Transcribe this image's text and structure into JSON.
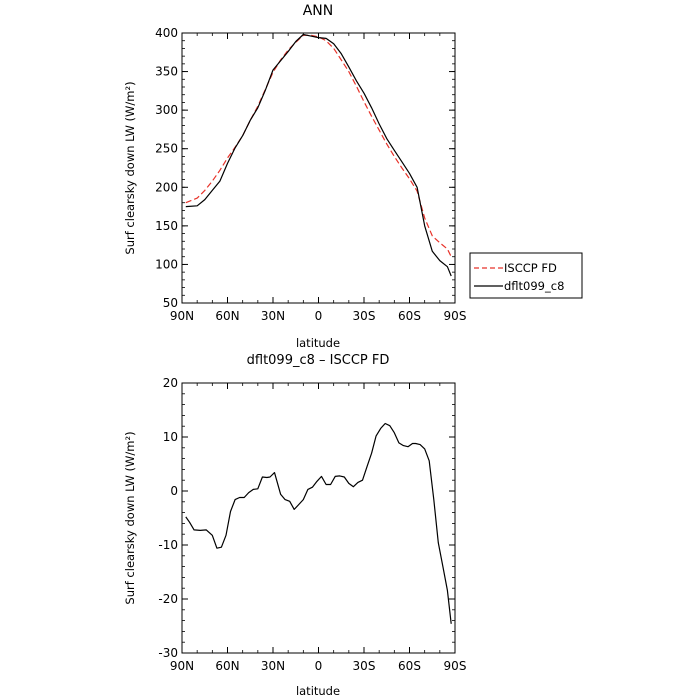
{
  "chart_data": [
    {
      "type": "line",
      "title": "ANN",
      "xlabel": "latitude",
      "ylabel": "Surf clearsky down LW (W/m²)",
      "ylim": [
        50,
        400
      ],
      "xlim": [
        90,
        -90
      ],
      "yticks": [
        50,
        100,
        150,
        200,
        250,
        300,
        350,
        400
      ],
      "xticks": [
        90,
        60,
        30,
        0,
        -30,
        -60,
        -90
      ],
      "xtick_labels": [
        "90N",
        "60N",
        "30N",
        "0",
        "30S",
        "60S",
        "90S"
      ],
      "legend_position": "right",
      "series": [
        {
          "name": "ISCCP FD",
          "color": "#e8332a",
          "dash": "dashed",
          "x": [
            87.5,
            80,
            75,
            70,
            65,
            60,
            55,
            50,
            45,
            40,
            35,
            30,
            25,
            20,
            15,
            10,
            5,
            0,
            -5,
            -10,
            -15,
            -20,
            -25,
            -30,
            -35,
            -40,
            -45,
            -50,
            -55,
            -60,
            -65,
            -70,
            -75,
            -80,
            -85,
            -87.5
          ],
          "y": [
            180,
            186,
            196,
            208,
            222,
            238,
            252,
            267,
            287,
            305,
            327,
            349,
            365,
            378,
            388,
            397,
            397,
            395,
            390,
            380,
            365,
            350,
            331,
            311,
            292,
            274,
            256,
            240,
            225,
            211,
            195,
            160,
            137,
            128,
            120,
            110
          ]
        },
        {
          "name": "dflt099_c8",
          "color": "#000000",
          "dash": "solid",
          "x": [
            87.5,
            80,
            75,
            70,
            65,
            60,
            55,
            50,
            45,
            40,
            35,
            30,
            25,
            20,
            15,
            10,
            5,
            0,
            -5,
            -10,
            -15,
            -20,
            -25,
            -30,
            -35,
            -40,
            -45,
            -50,
            -55,
            -60,
            -65,
            -70,
            -75,
            -80,
            -85,
            -87.5
          ],
          "y": [
            175,
            176,
            184,
            196,
            208,
            231,
            251,
            267,
            287,
            303,
            326,
            352,
            364,
            376,
            389,
            398,
            396,
            394,
            393,
            386,
            373,
            356,
            338,
            322,
            303,
            282,
            263,
            248,
            233,
            218,
            200,
            150,
            117,
            105,
            97,
            85
          ]
        }
      ]
    },
    {
      "type": "line",
      "title": "dflt099_c8 – ISCCP FD",
      "xlabel": "latitude",
      "ylabel": "Surf clearsky down LW (W/m²)",
      "ylim": [
        -30,
        20
      ],
      "xlim": [
        90,
        -90
      ],
      "yticks": [
        -30,
        -20,
        -10,
        0,
        10,
        20
      ],
      "xticks": [
        90,
        60,
        30,
        0,
        -30,
        -60,
        -90
      ],
      "xtick_labels": [
        "90N",
        "60N",
        "30N",
        "0",
        "30S",
        "60S",
        "90S"
      ],
      "series": [
        {
          "name": "",
          "color": "#000000",
          "dash": "solid",
          "x": [
            87.5,
            85,
            82,
            78,
            74,
            70,
            67,
            64,
            61,
            58,
            55,
            52,
            49,
            46,
            43,
            40,
            37,
            34,
            32,
            29,
            25,
            22,
            19,
            16,
            13,
            10,
            7,
            4,
            1,
            -2,
            -5,
            -8,
            -11,
            -14,
            -17,
            -20,
            -23,
            -26,
            -29,
            -32,
            -35,
            -38,
            -41,
            -44,
            -47,
            -50,
            -53,
            -56,
            -59,
            -62,
            -64,
            -67,
            -70,
            -73,
            -76,
            -79,
            -82,
            -85,
            -87.5
          ],
          "y": [
            -4.8,
            -5.8,
            -7.2,
            -7.3,
            -7.2,
            -8.2,
            -10.6,
            -10.4,
            -8.2,
            -3.8,
            -1.6,
            -1.2,
            -1.2,
            -0.3,
            0.3,
            0.4,
            2.6,
            2.5,
            2.6,
            3.4,
            -0.6,
            -1.6,
            -1.9,
            -3.4,
            -2.5,
            -1.6,
            0.3,
            0.7,
            1.8,
            2.7,
            1.2,
            1.2,
            2.7,
            2.8,
            2.6,
            1.4,
            0.8,
            1.6,
            2.0,
            4.5,
            7.0,
            10.2,
            11.6,
            12.5,
            12.1,
            10.8,
            8.9,
            8.4,
            8.2,
            8.8,
            8.8,
            8.6,
            7.8,
            5.6,
            -1.6,
            -9.6,
            -14.0,
            -18.4,
            -24.6
          ]
        }
      ]
    }
  ]
}
